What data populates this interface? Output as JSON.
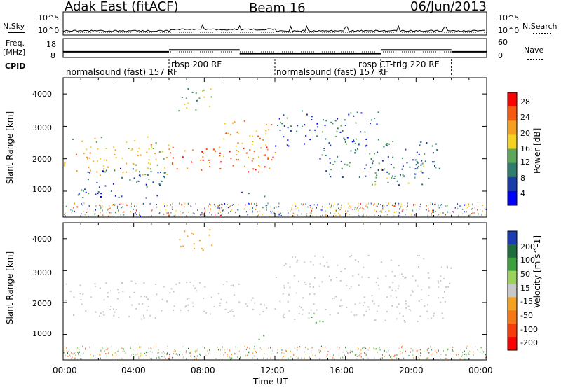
{
  "header": {
    "station": "Adak East (fitACF)",
    "beam": "Beam 16",
    "date": "06/Jun/2013"
  },
  "noise_panel": {
    "left_label": "N.Sky",
    "right_label": "N.Search",
    "left_ticks": [
      "10^5",
      "10^0"
    ],
    "right_ticks": [
      "10^5",
      "10^0"
    ]
  },
  "freq_panel": {
    "left_label_1": "Freq.",
    "left_label_2": "[MHz]",
    "left_ticks": [
      "18",
      "8"
    ],
    "right_label": "Nave",
    "right_ticks": [
      "60",
      "0"
    ]
  },
  "cpid": {
    "label": "CPID",
    "segments": [
      {
        "text": "normalsound (fast) 157 RF",
        "start_h": 0.0,
        "end_h": 6.0
      },
      {
        "text": "rbsp 200 RF",
        "start_h": 6.0,
        "end_h": 12.0
      },
      {
        "text": "normalsound (fast) 157 RF",
        "start_h": 12.0,
        "end_h": 18.0
      },
      {
        "text": "rbsp CT-trig 220 RF",
        "start_h": 18.0,
        "end_h": 22.0
      }
    ]
  },
  "power_panel": {
    "ylabel": "Slant Range [km]",
    "yticks": [
      "1000",
      "2000",
      "3000",
      "4000"
    ],
    "colorbar_label": "Power [dB]",
    "colorbar_ticks": [
      "4",
      "8",
      "12",
      "16",
      "20",
      "24",
      "28"
    ],
    "colorbar_colors": [
      "#0000ff",
      "#1a3ca8",
      "#2e7d6e",
      "#5ca85a",
      "#f5d21f",
      "#f5a020",
      "#f55a10",
      "#ff0000"
    ]
  },
  "velocity_panel": {
    "ylabel": "Slant Range [km]",
    "yticks": [
      "1000",
      "2000",
      "3000",
      "4000"
    ],
    "colorbar_label": "Velocity [m s^-1]",
    "colorbar_ticks": [
      "200",
      "100",
      "50",
      "15",
      "-15",
      "-50",
      "-100",
      "-200"
    ],
    "colorbar_colors": [
      "#1c3cb4",
      "#1e6e3c",
      "#3ca03c",
      "#9ad25a",
      "#c8c8c8",
      "#f5a01e",
      "#f57814",
      "#f53c0a",
      "#ff0000"
    ]
  },
  "time_axis": {
    "xlabel": "Time UT",
    "ticks": [
      "00:00",
      "04:00",
      "08:00",
      "12:00",
      "16:00",
      "20:00",
      "00:00"
    ]
  },
  "chart_data": {
    "type": "heatmap",
    "title": "Adak East (fitACF)  Beam 16  06/Jun/2013",
    "xlabel": "Time UT",
    "ylabel": "Slant Range [km]",
    "xlim_hours": [
      0,
      24
    ],
    "ylim_km": [
      200,
      4500
    ],
    "power_colorbar_range_db": [
      0,
      30
    ],
    "velocity_colorbar_range_ms": [
      -200,
      200
    ],
    "freq_mhz_by_period": [
      {
        "start_h": 0,
        "end_h": 6,
        "freq_mhz": 11
      },
      {
        "start_h": 6,
        "end_h": 10,
        "freq_mhz": 12
      },
      {
        "start_h": 10,
        "end_h": 18,
        "freq_mhz": 10
      },
      {
        "start_h": 18,
        "end_h": 22,
        "freq_mhz": 12
      },
      {
        "start_h": 22,
        "end_h": 24,
        "freq_mhz": 11
      }
    ],
    "power_echo_regions": [
      {
        "t0": 0.0,
        "t1": 6.0,
        "r0": 1500,
        "r1": 2700,
        "power_db": 18
      },
      {
        "t0": 0.8,
        "t1": 5.8,
        "r0": 800,
        "r1": 1800,
        "power_db": 6
      },
      {
        "t0": 6.0,
        "t1": 12.0,
        "r0": 1600,
        "r1": 2400,
        "power_db": 26
      },
      {
        "t0": 8.8,
        "t1": 11.8,
        "r0": 2000,
        "r1": 3200,
        "power_db": 20
      },
      {
        "t0": 6.5,
        "t1": 8.5,
        "r0": 3500,
        "r1": 4300,
        "power_db": 14
      },
      {
        "t0": 10.0,
        "t1": 11.5,
        "r0": 850,
        "r1": 1000,
        "power_db": 12
      },
      {
        "t0": 12.0,
        "t1": 18.0,
        "r0": 2400,
        "r1": 3500,
        "power_db": 6
      },
      {
        "t0": 14.5,
        "t1": 21.5,
        "r0": 1400,
        "r1": 2600,
        "power_db": 8
      },
      {
        "t0": 17.0,
        "t1": 20.5,
        "r0": 1200,
        "r1": 2000,
        "power_db": 10
      }
    ],
    "velocity_echo_regions": [
      {
        "t0": 0.0,
        "t1": 6.0,
        "r0": 1500,
        "r1": 2700,
        "velocity_ms": 0
      },
      {
        "t0": 6.0,
        "t1": 12.0,
        "r0": 1600,
        "r1": 2700,
        "velocity_ms": 0
      },
      {
        "t0": 6.5,
        "t1": 8.5,
        "r0": 3500,
        "r1": 4300,
        "velocity_ms": -60
      },
      {
        "t0": 10.0,
        "t1": 11.5,
        "r0": 850,
        "r1": 1000,
        "velocity_ms": 80
      },
      {
        "t0": 14.0,
        "t1": 15.5,
        "r0": 1300,
        "r1": 1700,
        "velocity_ms": 70
      },
      {
        "t0": 12.0,
        "t1": 22.0,
        "r0": 1400,
        "r1": 3500,
        "velocity_ms": 0
      }
    ]
  }
}
